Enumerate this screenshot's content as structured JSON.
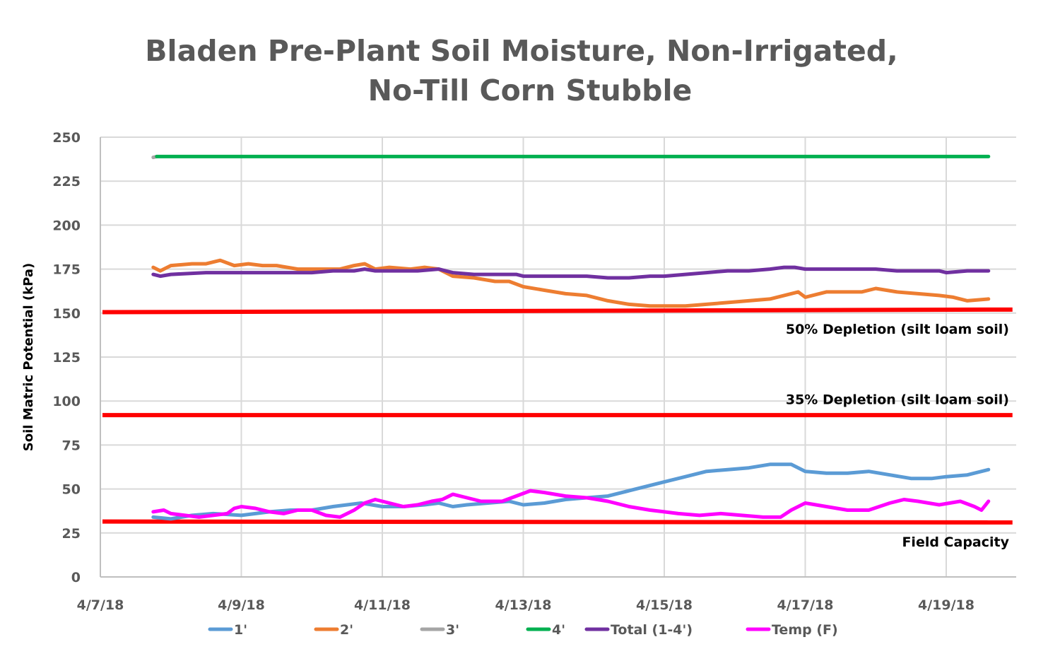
{
  "chart_data": {
    "type": "line",
    "title_lines": [
      "Bladen Pre-Plant Soil Moisture, Non-Irrigated,",
      "No-Till Corn Stubble"
    ],
    "xlabel": "",
    "ylabel": "Soil Matric Potential (kPa)",
    "ylim": [
      0,
      250
    ],
    "yticks": [
      0,
      25,
      50,
      75,
      100,
      125,
      150,
      175,
      200,
      225,
      250
    ],
    "xlim_days": [
      0,
      13
    ],
    "x_origin_date": "4/7/18",
    "xticks": [
      {
        "day": 0,
        "label": "4/7/18"
      },
      {
        "day": 2,
        "label": "4/9/18"
      },
      {
        "day": 4,
        "label": "4/11/18"
      },
      {
        "day": 6,
        "label": "4/13/18"
      },
      {
        "day": 8,
        "label": "4/15/18"
      },
      {
        "day": 10,
        "label": "4/17/18"
      },
      {
        "day": 12,
        "label": "4/19/18"
      }
    ],
    "grid": true,
    "legend_position": "bottom",
    "x_unit": "days since 4/7/18",
    "series": [
      {
        "name": "1'",
        "color": "#5B9BD5",
        "x": [
          0.75,
          1.0,
          1.3,
          1.6,
          2.0,
          2.4,
          2.7,
          3.0,
          3.3,
          3.5,
          3.7,
          4.0,
          4.3,
          4.6,
          4.8,
          5.0,
          5.2,
          5.5,
          5.8,
          6.0,
          6.3,
          6.6,
          6.9,
          7.2,
          7.5,
          7.8,
          8.0,
          8.3,
          8.6,
          8.9,
          9.2,
          9.5,
          9.8,
          10.0,
          10.3,
          10.6,
          10.9,
          11.2,
          11.5,
          11.8,
          12.0,
          12.3,
          12.6
        ],
        "y": [
          34,
          33,
          35,
          36,
          35,
          37,
          38,
          38,
          40,
          41,
          42,
          40,
          40,
          41,
          42,
          40,
          41,
          42,
          43,
          41,
          42,
          44,
          45,
          46,
          49,
          52,
          54,
          57,
          60,
          61,
          62,
          64,
          64,
          60,
          59,
          59,
          60,
          58,
          56,
          56,
          57,
          58,
          61
        ]
      },
      {
        "name": "2'",
        "color": "#ED7D31",
        "x": [
          0.75,
          0.85,
          1.0,
          1.3,
          1.5,
          1.7,
          1.9,
          2.1,
          2.3,
          2.5,
          2.8,
          3.1,
          3.4,
          3.6,
          3.75,
          3.9,
          4.1,
          4.4,
          4.6,
          4.8,
          5.0,
          5.3,
          5.6,
          5.8,
          6.0,
          6.3,
          6.6,
          6.9,
          7.2,
          7.5,
          7.8,
          8.0,
          8.3,
          8.6,
          8.9,
          9.2,
          9.5,
          9.8,
          9.9,
          10.0,
          10.3,
          10.6,
          10.8,
          11.0,
          11.3,
          11.6,
          11.9,
          12.1,
          12.3,
          12.6
        ],
        "y": [
          176,
          174,
          177,
          178,
          178,
          180,
          177,
          178,
          177,
          177,
          175,
          175,
          175,
          177,
          178,
          175,
          176,
          175,
          176,
          175,
          171,
          170,
          168,
          168,
          165,
          163,
          161,
          160,
          157,
          155,
          154,
          154,
          154,
          155,
          156,
          157,
          158,
          161,
          162,
          159,
          162,
          162,
          162,
          164,
          162,
          161,
          160,
          159,
          157,
          158
        ]
      },
      {
        "name": "3'",
        "color": "#A5A5A5",
        "x": [
          0.75,
          0.8
        ],
        "y": [
          238.5,
          239
        ]
      },
      {
        "name": "4'",
        "color": "#00B050",
        "x": [
          0.8,
          12.6
        ],
        "y": [
          239,
          239
        ]
      },
      {
        "name": "Total (1-4')",
        "color": "#7030A0",
        "x": [
          0.75,
          0.85,
          1.0,
          1.5,
          2.0,
          2.5,
          3.0,
          3.3,
          3.6,
          3.75,
          3.9,
          4.2,
          4.5,
          4.8,
          5.0,
          5.3,
          5.6,
          5.9,
          6.0,
          6.3,
          6.6,
          6.9,
          7.2,
          7.5,
          7.8,
          8.0,
          8.3,
          8.6,
          8.9,
          9.2,
          9.5,
          9.7,
          9.85,
          10.0,
          10.3,
          10.6,
          10.8,
          11.0,
          11.3,
          11.6,
          11.9,
          12.0,
          12.3,
          12.6
        ],
        "y": [
          172,
          171,
          172,
          173,
          173,
          173,
          173,
          174,
          174,
          175,
          174,
          174,
          174,
          175,
          173,
          172,
          172,
          172,
          171,
          171,
          171,
          171,
          170,
          170,
          171,
          171,
          172,
          173,
          174,
          174,
          175,
          176,
          176,
          175,
          175,
          175,
          175,
          175,
          174,
          174,
          174,
          173,
          174,
          174
        ]
      },
      {
        "name": "Temp (F)",
        "color": "#FF00FF",
        "x": [
          0.75,
          0.9,
          1.0,
          1.2,
          1.4,
          1.6,
          1.8,
          1.9,
          2.0,
          2.2,
          2.4,
          2.6,
          2.8,
          3.0,
          3.2,
          3.4,
          3.6,
          3.75,
          3.9,
          4.1,
          4.3,
          4.5,
          4.7,
          4.85,
          5.0,
          5.2,
          5.4,
          5.7,
          5.9,
          6.1,
          6.3,
          6.6,
          6.9,
          7.2,
          7.5,
          7.8,
          8.0,
          8.2,
          8.5,
          8.8,
          9.1,
          9.4,
          9.5,
          9.65,
          9.8,
          10.0,
          10.3,
          10.6,
          10.9,
          11.2,
          11.4,
          11.6,
          11.9,
          12.2,
          12.4,
          12.5,
          12.6
        ],
        "y": [
          37,
          38,
          36,
          35,
          34,
          35,
          36,
          39,
          40,
          39,
          37,
          36,
          38,
          38,
          35,
          34,
          38,
          42,
          44,
          42,
          40,
          41,
          43,
          44,
          47,
          45,
          43,
          43,
          46,
          49,
          48,
          46,
          45,
          43,
          40,
          38,
          37,
          36,
          35,
          36,
          35,
          34,
          34,
          34,
          38,
          42,
          40,
          38,
          38,
          42,
          44,
          43,
          41,
          43,
          40,
          38,
          43
        ]
      }
    ],
    "reference_lines": [
      {
        "name": "50% Depletion (silt loam soil)",
        "color": "#FF0000",
        "x": [
          0,
          13
        ],
        "y": [
          150.5,
          152
        ]
      },
      {
        "name": "35% Depletion (silt loam soil)",
        "color": "#FF0000",
        "x": [
          0,
          13
        ],
        "y": [
          92,
          92
        ]
      },
      {
        "name": "Field Capacity",
        "color": "#FF0000",
        "x": [
          0,
          13
        ],
        "y": [
          31.5,
          31
        ]
      }
    ],
    "annotations": [
      {
        "text": "50% Depletion (silt loam soil)",
        "y": 141
      },
      {
        "text": "35% Depletion (silt loam soil)",
        "y": 101
      },
      {
        "text": "Field Capacity",
        "y": 20
      }
    ],
    "legend": [
      "1'",
      "2'",
      "3'",
      "4'",
      "Total (1-4')",
      "Temp (F)"
    ]
  },
  "colors": {
    "axis_text": "#595959",
    "grid": "#D9D9D9",
    "axis_line": "#BFBFBF"
  }
}
